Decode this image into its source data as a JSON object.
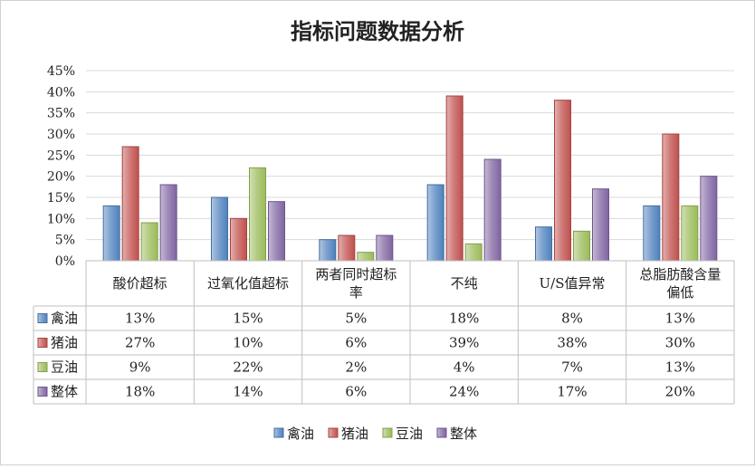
{
  "chart_data": {
    "type": "bar",
    "title": "指标问题数据分析",
    "categories": [
      [
        "酸价超标"
      ],
      [
        "过氧化值超标"
      ],
      [
        "两者同时超标",
        "率"
      ],
      [
        "不纯"
      ],
      [
        "U/S值异常"
      ],
      [
        "总脂肪酸含量",
        "偏低"
      ]
    ],
    "yticks": [
      "0%",
      "5%",
      "10%",
      "15%",
      "20%",
      "25%",
      "30%",
      "35%",
      "40%",
      "45%"
    ],
    "ylim": [
      0,
      45
    ],
    "grid": true,
    "legend_position": "bottom",
    "series": [
      {
        "name": "禽油",
        "color": "#4f81bd",
        "values": [
          13,
          15,
          5,
          18,
          8,
          13
        ],
        "labels": [
          "13%",
          "15%",
          "5%",
          "18%",
          "8%",
          "13%"
        ]
      },
      {
        "name": "猪油",
        "color": "#c0504d",
        "values": [
          27,
          10,
          6,
          39,
          38,
          30
        ],
        "labels": [
          "27%",
          "10%",
          "6%",
          "39%",
          "38%",
          "30%"
        ]
      },
      {
        "name": "豆油",
        "color": "#9bbb59",
        "values": [
          9,
          22,
          2,
          4,
          7,
          13
        ],
        "labels": [
          "9%",
          "22%",
          "2%",
          "4%",
          "7%",
          "13%"
        ]
      },
      {
        "name": "整体",
        "color": "#8064a2",
        "values": [
          18,
          14,
          6,
          24,
          17,
          20
        ],
        "labels": [
          "18%",
          "14%",
          "6%",
          "24%",
          "17%",
          "20%"
        ]
      }
    ]
  }
}
